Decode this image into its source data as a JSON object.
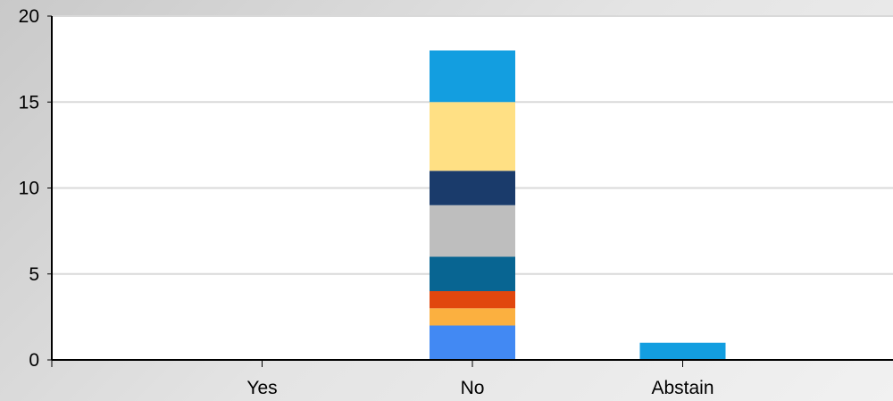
{
  "chart_data": {
    "type": "bar",
    "stacked": true,
    "categories": [
      "Yes",
      "No",
      "Abstain"
    ],
    "ylim": [
      0,
      20
    ],
    "yticks": [
      0,
      5,
      10,
      15,
      20
    ],
    "grid": true,
    "title": "",
    "xlabel": "",
    "ylabel": "",
    "series": [
      {
        "color": "#4289f3",
        "values": [
          0,
          2,
          0
        ]
      },
      {
        "color": "#fbb040",
        "values": [
          0,
          1,
          0
        ]
      },
      {
        "color": "#e1470e",
        "values": [
          0,
          1,
          0
        ]
      },
      {
        "color": "#086592",
        "values": [
          0,
          2,
          0
        ]
      },
      {
        "color": "#bebebe",
        "values": [
          0,
          3,
          0
        ]
      },
      {
        "color": "#1a3b6b",
        "values": [
          0,
          2,
          0
        ]
      },
      {
        "color": "#ffe084",
        "values": [
          0,
          4,
          0
        ]
      },
      {
        "color": "#139ee0",
        "values": [
          0,
          3,
          1
        ]
      }
    ]
  }
}
